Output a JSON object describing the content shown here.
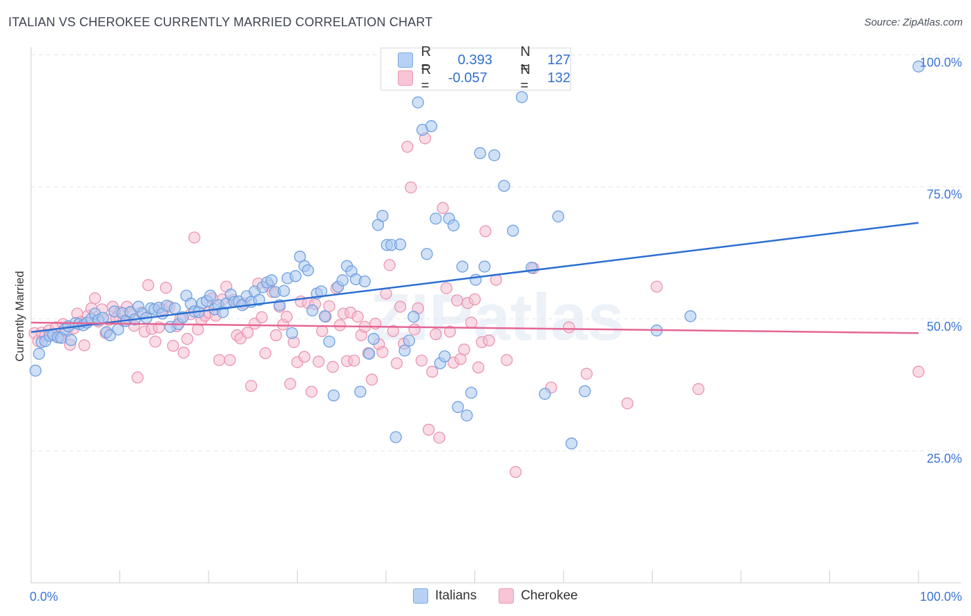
{
  "header": {
    "title": "ITALIAN VS CHEROKEE CURRENTLY MARRIED CORRELATION CHART",
    "source": "Source: ZipAtlas.com"
  },
  "legend": {
    "r_label": "R =",
    "n_label": "N =",
    "rows": [
      {
        "r": "0.393",
        "n": "127",
        "color": "#7aa6e3"
      },
      {
        "r": "-0.057",
        "n": "132",
        "color": "#ec97b3"
      }
    ]
  },
  "bottom_legend": [
    "Italians",
    "Cherokee"
  ],
  "watermark": "ZIPatlas",
  "colors": {
    "blue_fill": "#a9c8f0",
    "blue_stroke": "#6e9fe0",
    "blue_line": "#2a6fd1",
    "pink_fill": "#f6bfd1",
    "pink_stroke": "#ea94b1",
    "pink_line": "#e46594",
    "tick_label": "#3b74d6",
    "grid": "#e3e5e8"
  },
  "chart_data": {
    "type": "scatter",
    "title": "ITALIAN VS CHEROKEE CURRENTLY MARRIED CORRELATION CHART",
    "xlabel": "",
    "ylabel": "Currently Married",
    "xlim": [
      0,
      100
    ],
    "ylim": [
      0,
      104
    ],
    "x_tick_labels": [
      "0.0%",
      "100.0%"
    ],
    "y_ticks": [
      25,
      50,
      75,
      100
    ],
    "y_tick_labels": [
      "25.0%",
      "50.0%",
      "75.0%",
      "100.0%"
    ],
    "grid": true,
    "legend_position": "top-center",
    "series": [
      {
        "name": "Italians",
        "r": 0.393,
        "n": 127,
        "trend": {
          "x": [
            0,
            100
          ],
          "y": [
            47.5,
            68.2
          ]
        },
        "points": [
          [
            0.5,
            40.2
          ],
          [
            0.9,
            43.4
          ],
          [
            1.2,
            45.6
          ],
          [
            1.6,
            45.8
          ],
          [
            2.1,
            46.8
          ],
          [
            2.5,
            47.0
          ],
          [
            3.0,
            46.5
          ],
          [
            3.4,
            46.4
          ],
          [
            3.8,
            48.0
          ],
          [
            4.2,
            48.6
          ],
          [
            4.5,
            46.0
          ],
          [
            5.0,
            49.2
          ],
          [
            5.4,
            49.0
          ],
          [
            5.9,
            48.8
          ],
          [
            6.3,
            49.3
          ],
          [
            6.8,
            50.0
          ],
          [
            7.2,
            51.0
          ],
          [
            7.6,
            49.8
          ],
          [
            8.1,
            50.2
          ],
          [
            8.5,
            47.5
          ],
          [
            8.9,
            46.9
          ],
          [
            9.4,
            51.4
          ],
          [
            9.8,
            48.0
          ],
          [
            10.3,
            51.1
          ],
          [
            10.7,
            49.6
          ],
          [
            11.2,
            51.3
          ],
          [
            11.7,
            49.9
          ],
          [
            12.1,
            52.3
          ],
          [
            12.6,
            51.0
          ],
          [
            13.0,
            50.2
          ],
          [
            13.5,
            52.0
          ],
          [
            13.9,
            51.8
          ],
          [
            14.4,
            52.1
          ],
          [
            14.8,
            51.0
          ],
          [
            15.3,
            52.5
          ],
          [
            15.7,
            48.5
          ],
          [
            16.2,
            52.0
          ],
          [
            16.6,
            49.0
          ],
          [
            17.1,
            50.3
          ],
          [
            17.5,
            54.4
          ],
          [
            18.0,
            52.9
          ],
          [
            18.4,
            51.4
          ],
          [
            18.9,
            51.3
          ],
          [
            19.3,
            53.0
          ],
          [
            19.8,
            53.4
          ],
          [
            20.2,
            54.4
          ],
          [
            20.7,
            51.8
          ],
          [
            21.1,
            52.6
          ],
          [
            21.6,
            51.3
          ],
          [
            22.0,
            52.9
          ],
          [
            22.5,
            54.6
          ],
          [
            22.9,
            53.2
          ],
          [
            23.4,
            53.3
          ],
          [
            23.8,
            52.6
          ],
          [
            24.3,
            54.3
          ],
          [
            24.8,
            53.2
          ],
          [
            25.2,
            55.2
          ],
          [
            25.7,
            53.6
          ],
          [
            26.1,
            56.0
          ],
          [
            26.6,
            56.9
          ],
          [
            27.1,
            57.3
          ],
          [
            27.5,
            55.1
          ],
          [
            28.0,
            52.6
          ],
          [
            28.5,
            55.3
          ],
          [
            28.9,
            57.7
          ],
          [
            29.4,
            47.3
          ],
          [
            29.8,
            58.1
          ],
          [
            30.3,
            61.8
          ],
          [
            30.8,
            60.0
          ],
          [
            31.2,
            59.2
          ],
          [
            31.7,
            51.6
          ],
          [
            32.2,
            54.8
          ],
          [
            32.7,
            55.2
          ],
          [
            33.1,
            50.5
          ],
          [
            33.6,
            45.7
          ],
          [
            34.1,
            35.5
          ],
          [
            34.6,
            56.1
          ],
          [
            35.1,
            57.3
          ],
          [
            35.6,
            60.0
          ],
          [
            36.1,
            59.0
          ],
          [
            36.6,
            57.5
          ],
          [
            37.1,
            36.2
          ],
          [
            37.6,
            57.1
          ],
          [
            38.1,
            43.4
          ],
          [
            38.6,
            46.2
          ],
          [
            39.1,
            67.8
          ],
          [
            39.6,
            69.5
          ],
          [
            40.1,
            64.0
          ],
          [
            40.6,
            64.0
          ],
          [
            41.1,
            27.6
          ],
          [
            41.6,
            64.1
          ],
          [
            42.1,
            44.0
          ],
          [
            42.6,
            45.9
          ],
          [
            43.1,
            50.4
          ],
          [
            43.6,
            91.0
          ],
          [
            44.1,
            85.8
          ],
          [
            44.6,
            62.3
          ],
          [
            45.1,
            86.5
          ],
          [
            45.6,
            69.0
          ],
          [
            46.1,
            41.6
          ],
          [
            46.6,
            42.9
          ],
          [
            47.1,
            69.0
          ],
          [
            47.6,
            67.7
          ],
          [
            48.1,
            33.3
          ],
          [
            48.6,
            59.9
          ],
          [
            49.1,
            31.7
          ],
          [
            49.6,
            36.0
          ],
          [
            50.1,
            57.4
          ],
          [
            50.6,
            81.4
          ],
          [
            51.1,
            59.9
          ],
          [
            52.2,
            81.0
          ],
          [
            53.3,
            75.2
          ],
          [
            54.3,
            66.7
          ],
          [
            55.3,
            92.0
          ],
          [
            56.4,
            59.7
          ],
          [
            57.9,
            35.8
          ],
          [
            59.4,
            69.4
          ],
          [
            60.9,
            26.4
          ],
          [
            62.4,
            36.3
          ],
          [
            70.5,
            47.8
          ],
          [
            74.3,
            50.5
          ],
          [
            100,
            97.8
          ]
        ]
      },
      {
        "name": "Cherokee",
        "r": -0.057,
        "n": 132,
        "trend": {
          "x": [
            0,
            100
          ],
          "y": [
            49.3,
            47.3
          ]
        },
        "points": [
          [
            0.4,
            47.3
          ],
          [
            0.8,
            45.8
          ],
          [
            1.2,
            47.4
          ],
          [
            1.6,
            46.9
          ],
          [
            2.0,
            47.8
          ],
          [
            2.4,
            47.1
          ],
          [
            2.8,
            48.4
          ],
          [
            3.2,
            46.5
          ],
          [
            3.6,
            49.0
          ],
          [
            4.0,
            47.6
          ],
          [
            4.4,
            45.1
          ],
          [
            4.8,
            48.2
          ],
          [
            5.2,
            51.0
          ],
          [
            5.6,
            49.4
          ],
          [
            6.0,
            45.0
          ],
          [
            6.4,
            50.6
          ],
          [
            6.8,
            52.0
          ],
          [
            7.2,
            53.9
          ],
          [
            7.6,
            49.5
          ],
          [
            8.0,
            51.8
          ],
          [
            8.4,
            47.3
          ],
          [
            8.8,
            49.8
          ],
          [
            9.2,
            52.3
          ],
          [
            9.6,
            50.2
          ],
          [
            10.0,
            51.3
          ],
          [
            10.4,
            49.6
          ],
          [
            10.8,
            52.3
          ],
          [
            11.2,
            51.1
          ],
          [
            11.6,
            48.7
          ],
          [
            12.0,
            38.9
          ],
          [
            12.4,
            51.2
          ],
          [
            12.8,
            47.6
          ],
          [
            13.2,
            56.4
          ],
          [
            13.6,
            48.1
          ],
          [
            14.0,
            45.7
          ],
          [
            14.4,
            48.4
          ],
          [
            14.8,
            51.8
          ],
          [
            15.2,
            55.9
          ],
          [
            15.6,
            52.3
          ],
          [
            16.0,
            44.9
          ],
          [
            16.4,
            48.6
          ],
          [
            16.8,
            50.0
          ],
          [
            17.2,
            43.6
          ],
          [
            17.6,
            46.2
          ],
          [
            18.0,
            50.9
          ],
          [
            18.4,
            65.4
          ],
          [
            18.8,
            48.0
          ],
          [
            19.2,
            49.8
          ],
          [
            19.6,
            50.6
          ],
          [
            20.0,
            51.2
          ],
          [
            20.4,
            53.9
          ],
          [
            20.8,
            50.6
          ],
          [
            21.2,
            42.2
          ],
          [
            21.6,
            53.7
          ],
          [
            22.0,
            56.1
          ],
          [
            22.4,
            42.2
          ],
          [
            22.8,
            53.6
          ],
          [
            23.2,
            46.9
          ],
          [
            23.6,
            46.3
          ],
          [
            24.0,
            52.9
          ],
          [
            24.4,
            47.4
          ],
          [
            24.8,
            37.3
          ],
          [
            25.2,
            49.1
          ],
          [
            25.6,
            56.7
          ],
          [
            26.0,
            50.3
          ],
          [
            26.4,
            43.5
          ],
          [
            26.8,
            56.3
          ],
          [
            27.2,
            55.1
          ],
          [
            27.6,
            46.9
          ],
          [
            28.0,
            52.3
          ],
          [
            28.4,
            48.9
          ],
          [
            28.8,
            50.4
          ],
          [
            29.2,
            37.7
          ],
          [
            29.6,
            45.6
          ],
          [
            30.0,
            41.8
          ],
          [
            30.4,
            53.3
          ],
          [
            30.8,
            42.8
          ],
          [
            31.2,
            53.0
          ],
          [
            31.6,
            36.2
          ],
          [
            32.0,
            52.8
          ],
          [
            32.4,
            41.9
          ],
          [
            32.8,
            47.7
          ],
          [
            33.2,
            50.4
          ],
          [
            33.6,
            52.4
          ],
          [
            34.0,
            40.9
          ],
          [
            34.4,
            55.8
          ],
          [
            34.8,
            48.8
          ],
          [
            35.2,
            51.0
          ],
          [
            35.6,
            42.0
          ],
          [
            36.0,
            51.2
          ],
          [
            36.4,
            42.1
          ],
          [
            36.8,
            50.4
          ],
          [
            37.2,
            46.9
          ],
          [
            37.6,
            48.5
          ],
          [
            38.0,
            43.5
          ],
          [
            38.4,
            38.5
          ],
          [
            38.8,
            49.1
          ],
          [
            39.2,
            45.2
          ],
          [
            39.6,
            43.7
          ],
          [
            40.0,
            54.8
          ],
          [
            40.4,
            60.2
          ],
          [
            40.8,
            47.7
          ],
          [
            41.2,
            41.6
          ],
          [
            41.6,
            52.3
          ],
          [
            42.0,
            45.3
          ],
          [
            42.4,
            82.6
          ],
          [
            42.8,
            74.9
          ],
          [
            43.2,
            48.0
          ],
          [
            43.6,
            52.0
          ],
          [
            44.0,
            42.1
          ],
          [
            44.4,
            84.2
          ],
          [
            44.8,
            29.0
          ],
          [
            45.2,
            40.0
          ],
          [
            45.6,
            47.1
          ],
          [
            46.0,
            27.5
          ],
          [
            46.4,
            71.0
          ],
          [
            46.8,
            55.8
          ],
          [
            47.2,
            47.6
          ],
          [
            47.6,
            41.7
          ],
          [
            48.0,
            53.5
          ],
          [
            48.4,
            42.4
          ],
          [
            48.8,
            44.2
          ],
          [
            49.2,
            53.0
          ],
          [
            49.6,
            49.3
          ],
          [
            50.0,
            53.7
          ],
          [
            50.4,
            40.8
          ],
          [
            50.8,
            45.6
          ],
          [
            51.2,
            66.6
          ],
          [
            51.6,
            45.9
          ],
          [
            52.4,
            57.4
          ],
          [
            53.6,
            42.2
          ],
          [
            54.6,
            21.0
          ],
          [
            56.6,
            59.6
          ],
          [
            58.6,
            37.0
          ],
          [
            60.6,
            48.4
          ],
          [
            62.6,
            39.6
          ],
          [
            67.2,
            34.0
          ],
          [
            70.5,
            56.1
          ],
          [
            75.2,
            36.7
          ],
          [
            100,
            40.0
          ]
        ]
      }
    ]
  }
}
